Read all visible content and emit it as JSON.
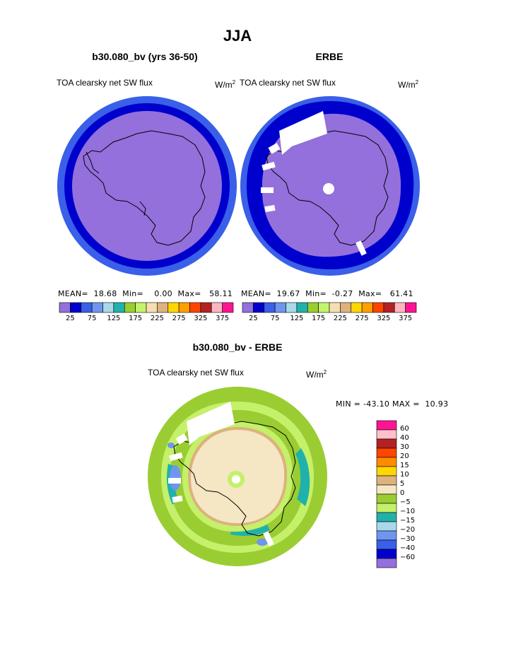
{
  "title": "JJA",
  "panels": [
    {
      "title": "b30.080_bv (yrs 36-50)",
      "field": "TOA clearsky net SW flux",
      "units": "W/m",
      "units_exp": "2",
      "stats": {
        "mean_label": "MEAN=",
        "mean": "18.68",
        "min_label": "Min=",
        "min": "0.00",
        "max_label": "Max=",
        "max": "58.11"
      }
    },
    {
      "title": "ERBE",
      "field": "TOA clearsky net SW flux",
      "units": "W/m",
      "units_exp": "2",
      "stats": {
        "mean_label": "MEAN=",
        "mean": "19.67",
        "min_label": "Min=",
        "min": "-0.27",
        "max_label": "Max=",
        "max": "61.41"
      }
    }
  ],
  "colorbar_top": {
    "colors": [
      "#9370db",
      "#0000cd",
      "#3a5fe8",
      "#6f96ee",
      "#a8d8ea",
      "#20b2aa",
      "#9acd32",
      "#c1f56c",
      "#f5deb3",
      "#dcb27e",
      "#ffd700",
      "#ff9f00",
      "#ff4500",
      "#b22222",
      "#ffb6c1",
      "#ff1493"
    ],
    "labels": [
      "25",
      "75",
      "125",
      "175",
      "225",
      "275",
      "325",
      "375"
    ]
  },
  "diff": {
    "title": "b30.080_bv - ERBE",
    "field": "TOA clearsky net SW flux",
    "units": "W/m",
    "units_exp": "2",
    "minmax": "MIN = -43.10 MAX =  10.93"
  },
  "colorbar_diff": {
    "colors": [
      "#ff1493",
      "#ffc0cb",
      "#b22222",
      "#ff4500",
      "#ff8c00",
      "#ffd700",
      "#dcb27e",
      "#f5e6c4",
      "#9acd32",
      "#c4f06a",
      "#20b2aa",
      "#a8d8ea",
      "#6f96ee",
      "#3a5fe8",
      "#0000cd",
      "#9370db"
    ],
    "labels": [
      "60",
      "40",
      "30",
      "20",
      "15",
      "10",
      "5",
      "0",
      "−5",
      "−10",
      "−15",
      "−20",
      "−30",
      "−40",
      "−60"
    ]
  },
  "colors": {
    "purple": "#9370db",
    "navy": "#0000cd",
    "blue": "#3a5fe8",
    "green": "#9acd32",
    "lightgreen": "#c4f06a",
    "wheat": "#f5e6c4",
    "tan": "#dcb27e",
    "teal": "#20b2aa"
  }
}
